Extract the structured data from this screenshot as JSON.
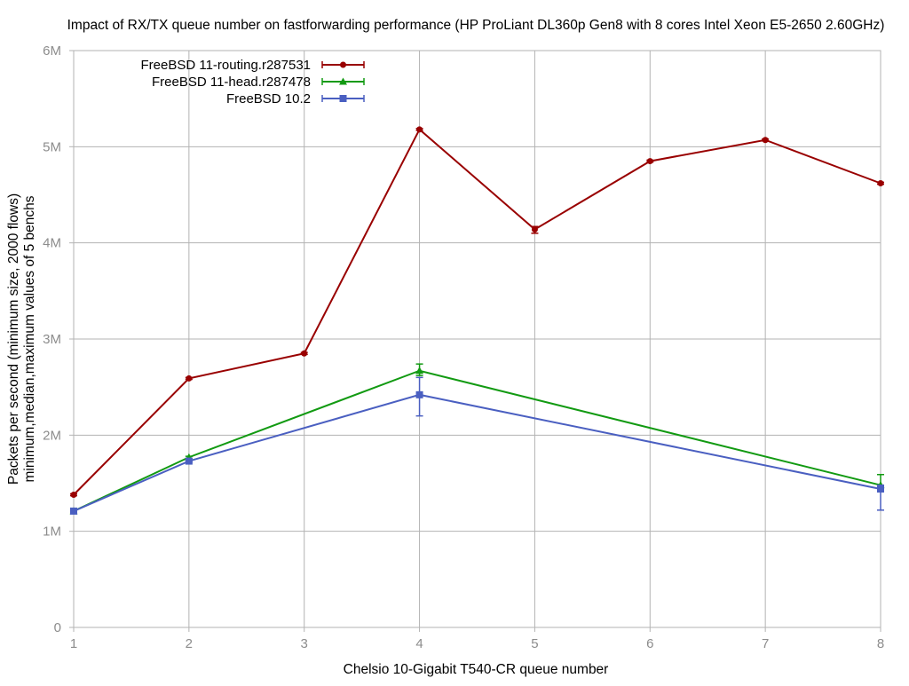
{
  "chart_data": {
    "type": "line",
    "title": "Impact of RX/TX queue number on fastforwarding performance (HP ProLiant DL360p Gen8 with 8 cores Intel Xeon E5-2650 2.60GHz)",
    "xlabel": "Chelsio 10-Gigabit T540-CR queue number",
    "ylabel_lines": [
      "Packets per second (minimum size, 2000 flows)",
      "minimum,median,maximum values of 5 benchs"
    ],
    "xlim": [
      1,
      8
    ],
    "ylim": [
      0,
      6000000
    ],
    "x_ticks": [
      1,
      2,
      3,
      4,
      5,
      6,
      7,
      8
    ],
    "x_tick_labels": [
      "1",
      "2",
      "3",
      "4",
      "5",
      "6",
      "7",
      "8"
    ],
    "y_ticks": [
      0,
      1000000,
      2000000,
      3000000,
      4000000,
      5000000,
      6000000
    ],
    "y_tick_labels": [
      "0",
      "1M",
      "2M",
      "3M",
      "4M",
      "5M",
      "6M"
    ],
    "grid": true,
    "legend_position": "top-left",
    "series": [
      {
        "name": "FreeBSD 11-routing.r287531",
        "color": "#990000",
        "marker": "circle",
        "x": [
          1,
          2,
          3,
          4,
          5,
          6,
          7,
          8
        ],
        "y": [
          1380000,
          2590000,
          2850000,
          5180000,
          4140000,
          4850000,
          5070000,
          4620000
        ],
        "y_min": [
          1370000,
          2580000,
          2840000,
          5170000,
          4100000,
          4840000,
          5060000,
          4610000
        ],
        "y_max": [
          1390000,
          2600000,
          2860000,
          5190000,
          4170000,
          4860000,
          5080000,
          4630000
        ]
      },
      {
        "name": "FreeBSD 11-head.r287478",
        "color": "#129a12",
        "marker": "triangle",
        "x": [
          1,
          2,
          4,
          8
        ],
        "y": [
          1210000,
          1770000,
          2670000,
          1480000
        ],
        "y_min": [
          1200000,
          1760000,
          2620000,
          1440000
        ],
        "y_max": [
          1220000,
          1780000,
          2740000,
          1590000
        ]
      },
      {
        "name": "FreeBSD 10.2",
        "color": "#4a5fc1",
        "marker": "square",
        "x": [
          1,
          2,
          4,
          8
        ],
        "y": [
          1210000,
          1730000,
          2420000,
          1440000
        ],
        "y_min": [
          1200000,
          1720000,
          2200000,
          1220000
        ],
        "y_max": [
          1220000,
          1740000,
          2600000,
          1480000
        ]
      }
    ]
  }
}
